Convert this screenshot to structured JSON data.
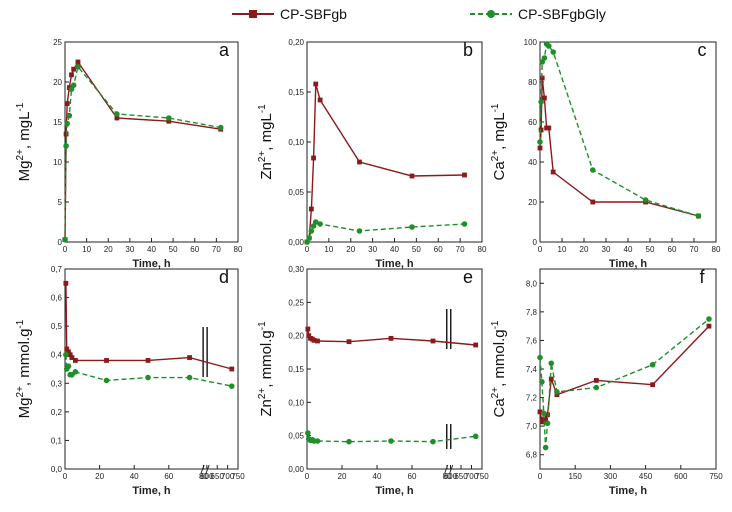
{
  "legend": {
    "items": [
      {
        "label": "CP-SBFgb",
        "color": "#8B1A1A",
        "marker": "square",
        "dash": false
      },
      {
        "label": "CP-SBFgbGly",
        "color": "#1F8F2A",
        "marker": "circle",
        "dash": true
      }
    ]
  },
  "chart_data": [
    {
      "id": "a",
      "type": "line",
      "panel_label": "a",
      "ylabel": {
        "base": "Mg",
        "sup": "2+",
        "rest": ", mgL",
        "unit_sup": "-1"
      },
      "xlabel": "Time, h",
      "xlim": [
        0,
        80
      ],
      "ylim": [
        0,
        25
      ],
      "xticks": [
        0,
        10,
        20,
        30,
        40,
        50,
        60,
        70,
        80
      ],
      "xtick_labels": [
        "0",
        "10",
        "20",
        "30",
        "40",
        "50",
        "60",
        "70",
        "80"
      ],
      "yticks": [
        0,
        5,
        10,
        15,
        20,
        25
      ],
      "ytick_labels": [
        "0",
        "5",
        "10",
        "15",
        "20",
        "25"
      ],
      "series": [
        {
          "name": "CP-SBFgb",
          "x": [
            0,
            0.5,
            1,
            2,
            3,
            4,
            6,
            24,
            48,
            72
          ],
          "y": [
            0.3,
            13.5,
            17.3,
            19.3,
            20.9,
            21.6,
            22.5,
            15.5,
            15.1,
            14.1
          ]
        },
        {
          "name": "CP-SBFgbGly",
          "x": [
            0,
            0.5,
            1,
            2,
            3,
            4,
            6,
            24,
            48,
            72
          ],
          "y": [
            0.3,
            12.0,
            14.8,
            15.8,
            19.1,
            19.6,
            21.9,
            16.0,
            15.5,
            14.3
          ]
        }
      ]
    },
    {
      "id": "b",
      "type": "line",
      "panel_label": "b",
      "ylabel": {
        "base": "Zn",
        "sup": "2+",
        "rest": ", mgL",
        "unit_sup": "-1"
      },
      "xlabel": "Time, h",
      "xlim": [
        0,
        80
      ],
      "ylim": [
        0,
        0.2
      ],
      "xticks": [
        0,
        10,
        20,
        30,
        40,
        50,
        60,
        70,
        80
      ],
      "xtick_labels": [
        "0",
        "10",
        "20",
        "30",
        "40",
        "50",
        "60",
        "70",
        "80"
      ],
      "yticks": [
        0,
        0.05,
        0.1,
        0.15,
        0.2
      ],
      "ytick_labels": [
        "0,00",
        "0,05",
        "0,10",
        "0,15",
        "0,20"
      ],
      "series": [
        {
          "name": "CP-SBFgb",
          "x": [
            0,
            1,
            2,
            3,
            4,
            6,
            24,
            48,
            72
          ],
          "y": [
            0.0,
            0.004,
            0.033,
            0.084,
            0.158,
            0.142,
            0.08,
            0.066,
            0.067
          ]
        },
        {
          "name": "CP-SBFgbGly",
          "x": [
            0,
            1,
            2,
            3,
            4,
            6,
            24,
            48,
            72
          ],
          "y": [
            0.0,
            0.004,
            0.011,
            0.016,
            0.02,
            0.018,
            0.011,
            0.015,
            0.018
          ]
        }
      ]
    },
    {
      "id": "c",
      "type": "line",
      "panel_label": "c",
      "ylabel": {
        "base": "Ca",
        "sup": "2+",
        "rest": ", mgL",
        "unit_sup": "-1"
      },
      "xlabel": "Time, h",
      "xlim": [
        0,
        80
      ],
      "ylim": [
        0,
        100
      ],
      "xticks": [
        0,
        10,
        20,
        30,
        40,
        50,
        60,
        70,
        80
      ],
      "xtick_labels": [
        "0",
        "10",
        "20",
        "30",
        "40",
        "50",
        "60",
        "70",
        "80"
      ],
      "yticks": [
        0,
        20,
        40,
        60,
        80,
        100
      ],
      "ytick_labels": [
        "0",
        "20",
        "40",
        "60",
        "80",
        "100"
      ],
      "series": [
        {
          "name": "CP-SBFgb",
          "x": [
            0,
            0.5,
            1,
            2,
            3,
            4,
            6,
            24,
            48,
            72
          ],
          "y": [
            47,
            56,
            82,
            72,
            57,
            57,
            35,
            20,
            20,
            13
          ]
        },
        {
          "name": "CP-SBFgbGly",
          "x": [
            0,
            0.5,
            1,
            2,
            3,
            4,
            6,
            24,
            48,
            72
          ],
          "y": [
            50,
            70,
            90,
            92,
            99,
            98,
            95,
            36,
            21,
            13
          ]
        }
      ]
    },
    {
      "id": "d",
      "type": "line",
      "panel_label": "d",
      "ylabel": {
        "base": "Mg",
        "sup": "2+",
        "rest": ", mmol.g",
        "unit_sup": "-1"
      },
      "xlabel": "Time, h",
      "xlim": [
        0,
        750
      ],
      "ylim": [
        0,
        0.7
      ],
      "xticks": [
        0,
        20,
        40,
        60,
        80,
        600,
        650,
        700,
        750
      ],
      "xtick_labels": [
        "0",
        "20",
        "40",
        "60",
        "80",
        "600",
        "650",
        "700",
        "750"
      ],
      "yticks": [
        0,
        0.1,
        0.2,
        0.3,
        0.4,
        0.5,
        0.6,
        0.7
      ],
      "ytick_labels": [
        "0,0",
        "0,1",
        "0,2",
        "0,3",
        "0,4",
        "0,5",
        "0,6",
        "0,7"
      ],
      "series": [
        {
          "name": "CP-SBFgb",
          "x": [
            0.5,
            1,
            2,
            3,
            4,
            6,
            24,
            48,
            72,
            720
          ],
          "y": [
            0.65,
            0.42,
            0.41,
            0.4,
            0.39,
            0.38,
            0.38,
            0.38,
            0.39,
            0.35
          ]
        },
        {
          "name": "CP-SBFgbGly",
          "x": [
            0.5,
            1,
            2,
            3,
            4,
            6,
            24,
            48,
            72,
            720
          ],
          "y": [
            0.4,
            0.35,
            0.36,
            0.33,
            0.33,
            0.34,
            0.31,
            0.32,
            0.32,
            0.29
          ]
        }
      ]
    },
    {
      "id": "e",
      "type": "line",
      "panel_label": "e",
      "ylabel": {
        "base": "Zn",
        "sup": "2+",
        "rest": ", mmol.g",
        "unit_sup": "-1"
      },
      "xlabel": "Time, h",
      "xlim": [
        0,
        750
      ],
      "ylim": [
        0,
        0.3
      ],
      "xticks": [
        0,
        20,
        40,
        60,
        80,
        600,
        650,
        700,
        750
      ],
      "xtick_labels": [
        "0",
        "20",
        "40",
        "60",
        "80",
        "600",
        "650",
        "700",
        "750"
      ],
      "yticks": [
        0,
        0.05,
        0.1,
        0.15,
        0.2,
        0.25,
        0.3
      ],
      "ytick_labels": [
        "0,00",
        "0,05",
        "0,10",
        "0,15",
        "0,20",
        "0,25",
        "0,30"
      ],
      "series": [
        {
          "name": "CP-SBFgb",
          "x": [
            0.5,
            1,
            2,
            3,
            4,
            6,
            24,
            48,
            72,
            720
          ],
          "y": [
            0.21,
            0.2,
            0.196,
            0.195,
            0.193,
            0.192,
            0.191,
            0.196,
            0.192,
            0.186
          ]
        },
        {
          "name": "CP-SBFgbGly",
          "x": [
            0.5,
            1,
            2,
            3,
            4,
            6,
            24,
            48,
            72,
            720
          ],
          "y": [
            0.054,
            0.045,
            0.043,
            0.044,
            0.042,
            0.042,
            0.041,
            0.042,
            0.041,
            0.049
          ]
        }
      ]
    },
    {
      "id": "f",
      "type": "line",
      "panel_label": "f",
      "ylabel": {
        "base": "Ca",
        "sup": "2+",
        "rest": ", mmol.g",
        "unit_sup": "-1"
      },
      "xlabel": "Time, h",
      "xlim": [
        0,
        750
      ],
      "ylim": [
        6.7,
        8.1
      ],
      "xticks": [
        0,
        150,
        300,
        450,
        600,
        750
      ],
      "xtick_labels": [
        "0",
        "150",
        "300",
        "450",
        "600",
        "750"
      ],
      "yticks": [
        6.8,
        7.0,
        7.2,
        7.4,
        7.6,
        7.8,
        8.0
      ],
      "ytick_labels": [
        "6,8",
        "7,0",
        "7,2",
        "7,4",
        "7,6",
        "7,8",
        "8,0"
      ],
      "series": [
        {
          "name": "CP-SBFgb",
          "x": [
            0,
            8,
            16,
            24,
            32,
            48,
            72,
            240,
            480,
            720
          ],
          "y": [
            7.1,
            7.03,
            7.05,
            7.04,
            7.08,
            7.33,
            7.22,
            7.32,
            7.29,
            7.7
          ]
        },
        {
          "name": "CP-SBFgbGly",
          "x": [
            0,
            8,
            16,
            24,
            32,
            48,
            72,
            240,
            480,
            720
          ],
          "y": [
            7.48,
            7.31,
            7.09,
            6.85,
            7.02,
            7.44,
            7.24,
            7.27,
            7.43,
            7.75
          ]
        }
      ]
    }
  ]
}
